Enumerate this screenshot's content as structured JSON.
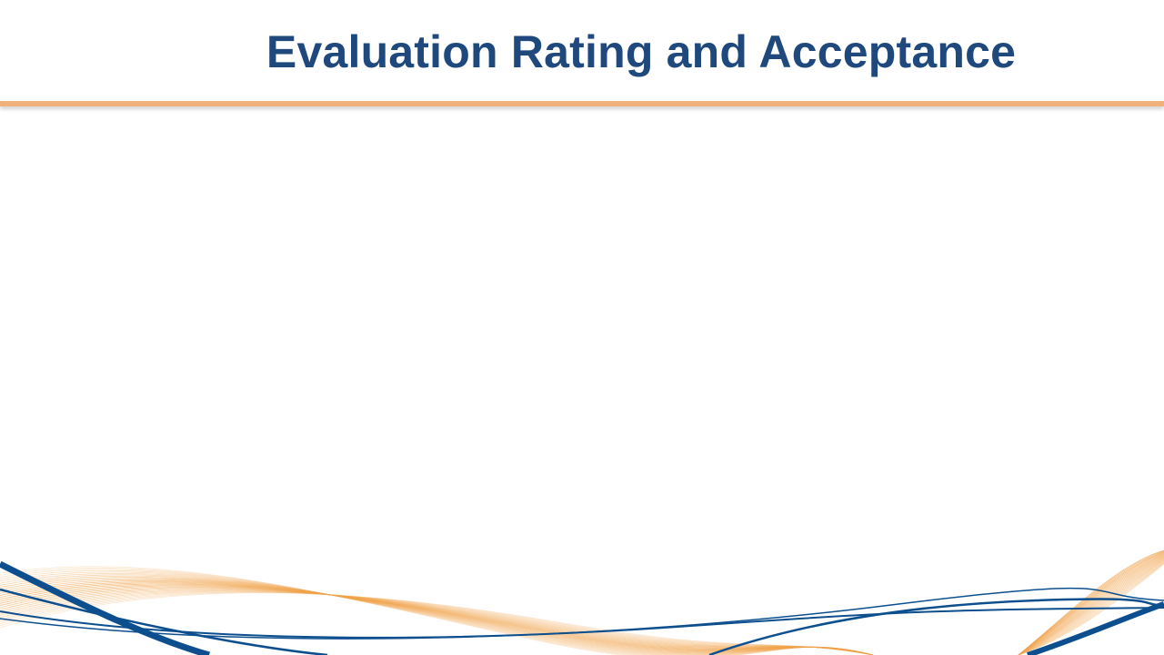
{
  "slide": {
    "title": "Evaluation Rating and Acceptance",
    "title_color": "#1f497d",
    "divider_color": "#f0b27a",
    "wave_colors": {
      "blue": "#0d4f8e",
      "orange": "#f0a24a"
    }
  }
}
